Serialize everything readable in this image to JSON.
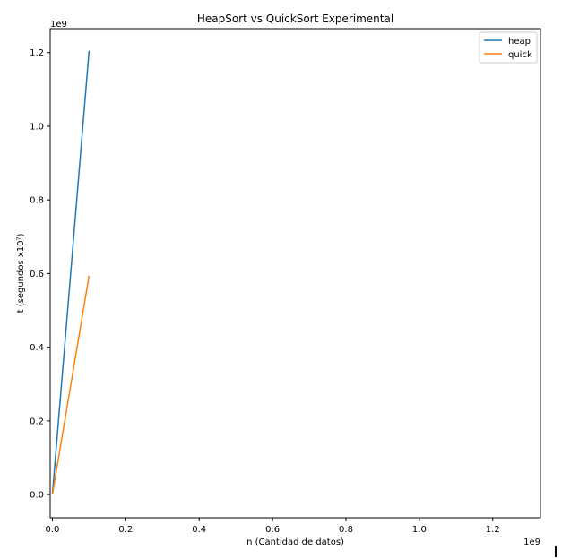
{
  "chart_data": {
    "type": "line",
    "title": "HeapSort vs QuickSort Experimental",
    "xlabel": "n (Cantidad de datos)",
    "ylabel": "t (segundos x10⁷)",
    "x_offset_text": "1e9",
    "y_offset_text": "1e9",
    "xlim": [
      -0.006,
      1.33
    ],
    "ylim": [
      -0.063,
      1.265
    ],
    "x_ticks": [
      0.0,
      0.2,
      0.4,
      0.6,
      0.8,
      1.0,
      1.2
    ],
    "x_tick_labels": [
      "0.0",
      "0.2",
      "0.4",
      "0.6",
      "0.8",
      "1.0",
      "1.2"
    ],
    "y_ticks": [
      0.0,
      0.2,
      0.4,
      0.6,
      0.8,
      1.0,
      1.2
    ],
    "y_tick_labels": [
      "0.0",
      "0.2",
      "0.4",
      "0.6",
      "0.8",
      "1.0",
      "1.2"
    ],
    "legend_position": "top-right",
    "grid": false,
    "series": [
      {
        "name": "heap",
        "color": "#1f77b4",
        "x": [
          0.0,
          0.1
        ],
        "y": [
          0.0,
          1.205
        ]
      },
      {
        "name": "quick",
        "color": "#ff7f0e",
        "x": [
          0.0,
          0.1
        ],
        "y": [
          0.0,
          0.594
        ]
      }
    ]
  }
}
